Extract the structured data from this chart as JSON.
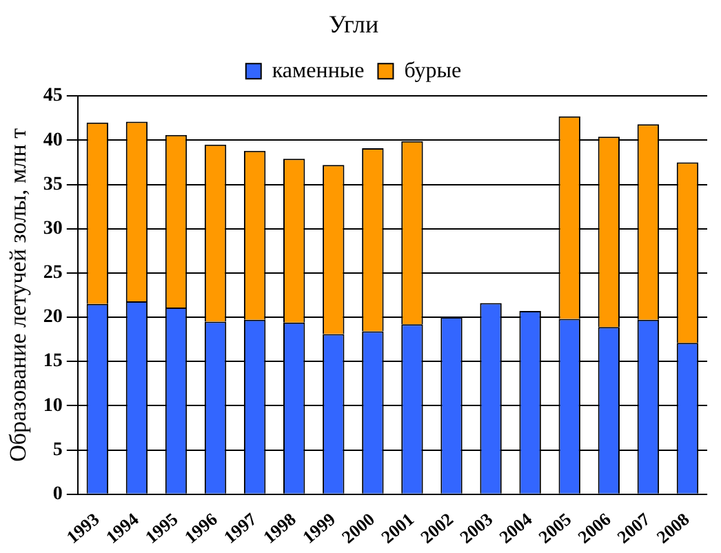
{
  "chart_data": {
    "type": "bar",
    "title": "Угли",
    "ylabel": "Образование летучей золы, млн т",
    "categories": [
      "1993",
      "1994",
      "1995",
      "1996",
      "1997",
      "1998",
      "1999",
      "2000",
      "2001",
      "2002",
      "2003",
      "2004",
      "2005",
      "2006",
      "2007",
      "2008"
    ],
    "series": [
      {
        "name": "каменные",
        "color": "#3366ff",
        "values": [
          21.5,
          21.8,
          21.1,
          19.5,
          19.7,
          19.4,
          18.1,
          18.4,
          19.2,
          20.0,
          21.6,
          20.7,
          19.8,
          18.9,
          19.7,
          17.1
        ]
      },
      {
        "name": "бурые",
        "color": "#ff9900",
        "values": [
          20.5,
          20.3,
          19.5,
          20.0,
          19.1,
          18.5,
          19.1,
          20.7,
          20.7,
          null,
          null,
          null,
          22.9,
          21.5,
          22.1,
          20.4
        ]
      }
    ],
    "stacked": true,
    "ylim": [
      0,
      45
    ],
    "yticks": [
      0,
      5,
      10,
      15,
      20,
      25,
      30,
      35,
      40,
      45
    ],
    "grid": "y",
    "legend": "top"
  }
}
